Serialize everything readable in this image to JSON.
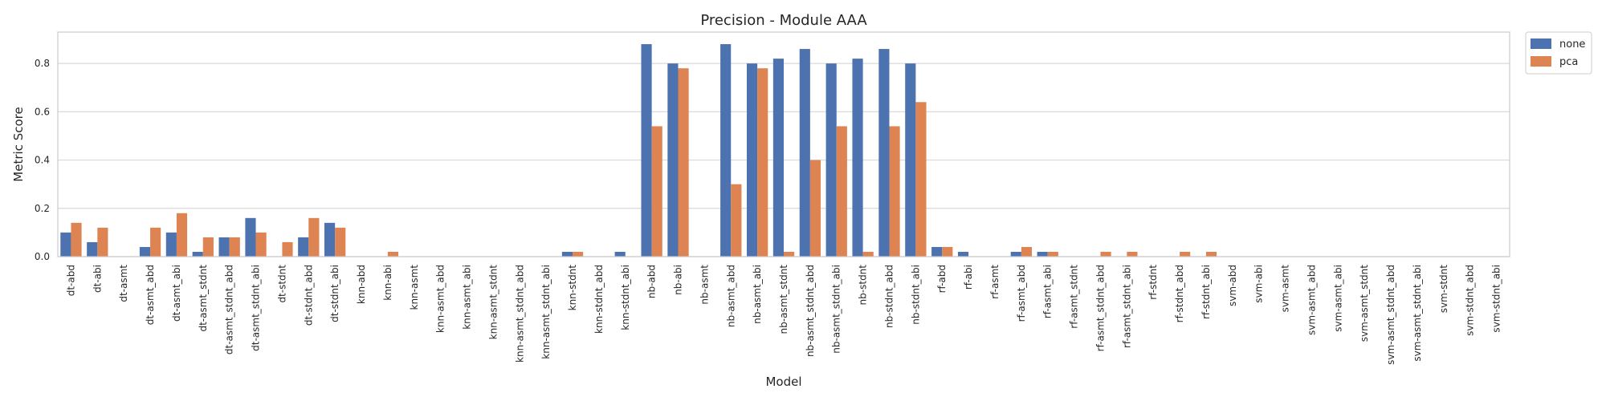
{
  "chart_data": {
    "type": "bar",
    "title": "Precision - Module AAA",
    "xlabel": "Model",
    "ylabel": "Metric Score",
    "ylim": [
      0,
      0.93
    ],
    "yticks": [
      0.0,
      0.2,
      0.4,
      0.6,
      0.8
    ],
    "ytick_labels": [
      "0.0",
      "0.2",
      "0.4",
      "0.6",
      "0.8"
    ],
    "grid": "horizontal",
    "legend_position": "outside-top-right",
    "categories": [
      "dt-abd",
      "dt-abi",
      "dt-asmt",
      "dt-asmt_abd",
      "dt-asmt_abi",
      "dt-asmt_stdnt",
      "dt-asmt_stdnt_abd",
      "dt-asmt_stdnt_abi",
      "dt-stdnt",
      "dt-stdnt_abd",
      "dt-stdnt_abi",
      "knn-abd",
      "knn-abi",
      "knn-asmt",
      "knn-asmt_abd",
      "knn-asmt_abi",
      "knn-asmt_stdnt",
      "knn-asmt_stdnt_abd",
      "knn-asmt_stdnt_abi",
      "knn-stdnt",
      "knn-stdnt_abd",
      "knn-stdnt_abi",
      "nb-abd",
      "nb-abi",
      "nb-asmt",
      "nb-asmt_abd",
      "nb-asmt_abi",
      "nb-asmt_stdnt",
      "nb-asmt_stdnt_abd",
      "nb-asmt_stdnt_abi",
      "nb-stdnt",
      "nb-stdnt_abd",
      "nb-stdnt_abi",
      "rf-abd",
      "rf-abi",
      "rf-asmt",
      "rf-asmt_abd",
      "rf-asmt_abi",
      "rf-asmt_stdnt",
      "rf-asmt_stdnt_abd",
      "rf-asmt_stdnt_abi",
      "rf-stdnt",
      "rf-stdnt_abd",
      "rf-stdnt_abi",
      "svm-abd",
      "svm-abi",
      "svm-asmt",
      "svm-asmt_abd",
      "svm-asmt_abi",
      "svm-asmt_stdnt",
      "svm-asmt_stdnt_abd",
      "svm-asmt_stdnt_abi",
      "svm-stdnt",
      "svm-stdnt_abd",
      "svm-stdnt_abi"
    ],
    "series": [
      {
        "name": "none",
        "color": "#4c72b0",
        "values": [
          0.1,
          0.06,
          0,
          0.04,
          0.1,
          0.02,
          0.08,
          0.16,
          0,
          0.08,
          0.14,
          0,
          0,
          0,
          0,
          0,
          0,
          0,
          0,
          0.02,
          0,
          0.02,
          0.88,
          0.8,
          0,
          0.88,
          0.8,
          0.82,
          0.86,
          0.8,
          0.82,
          0.86,
          0.8,
          0.04,
          0.02,
          0,
          0.02,
          0.02,
          0,
          0,
          0,
          0,
          0,
          0,
          0,
          0,
          0,
          0,
          0,
          0,
          0,
          0,
          0,
          0,
          0
        ]
      },
      {
        "name": "pca",
        "color": "#dd8452",
        "values": [
          0.14,
          0.12,
          0,
          0.12,
          0.18,
          0.08,
          0.08,
          0.1,
          0.06,
          0.16,
          0.12,
          0,
          0.02,
          0,
          0,
          0,
          0,
          0,
          0,
          0.02,
          0,
          0,
          0.54,
          0.78,
          0,
          0.3,
          0.78,
          0.02,
          0.4,
          0.54,
          0.02,
          0.54,
          0.64,
          0.04,
          0,
          0,
          0.04,
          0.02,
          0,
          0.02,
          0.02,
          0,
          0.02,
          0.02,
          0,
          0,
          0,
          0,
          0,
          0,
          0,
          0,
          0,
          0,
          0
        ]
      }
    ]
  }
}
